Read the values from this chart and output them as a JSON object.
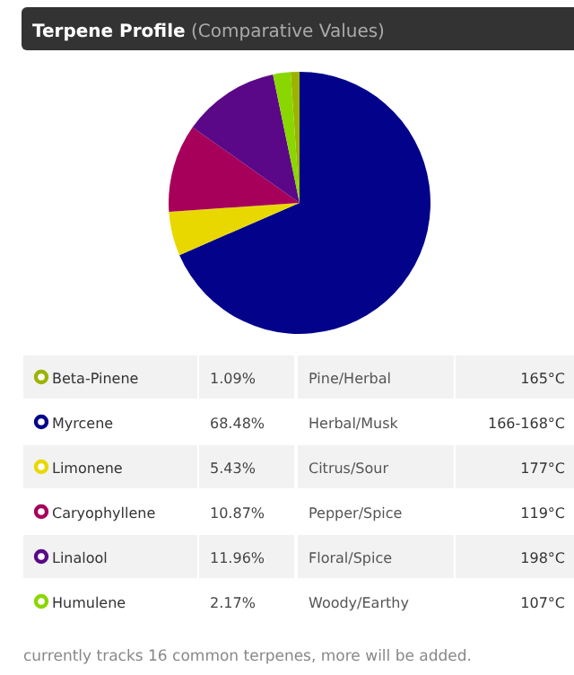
{
  "chart_data": {
    "type": "pie",
    "title": "Terpene Profile",
    "subtitle": "(Comparative Values)",
    "categories": [
      "Beta-Pinene",
      "Myrcene",
      "Limonene",
      "Caryophyllene",
      "Linalool",
      "Humulene"
    ],
    "values": [
      1.09,
      68.48,
      5.43,
      10.87,
      11.96,
      2.17
    ],
    "legend": "bottom",
    "colors": [
      "#9cb400",
      "#02028a",
      "#e8d800",
      "#a6005a",
      "#5a0888",
      "#8ad600"
    ],
    "value_labels": [
      "1.09%",
      "68.48%",
      "5.43%",
      "10.87%",
      "11.96%",
      "2.17%"
    ],
    "annotations": [
      "Pine/Herbal",
      "Herbal/Musk",
      "Citrus/Sour",
      "Pepper/Spice",
      "Floral/Spice",
      "Woody/Earthy",
      "165°C",
      "166-168°C",
      "177°C",
      "119°C",
      "198°C",
      "107°C",
      "currently tracks 16 common terpenes, more will be added."
    ]
  }
}
